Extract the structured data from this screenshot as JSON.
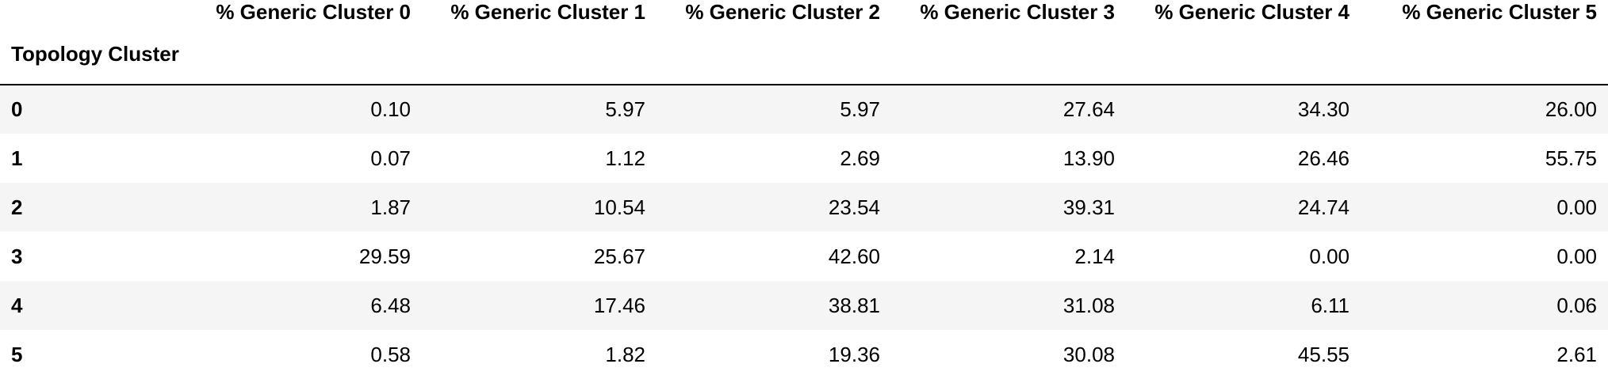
{
  "table": {
    "index_name": "Topology Cluster",
    "columns": [
      "% Generic Cluster 0",
      "% Generic Cluster 1",
      "% Generic Cluster 2",
      "% Generic Cluster 3",
      "% Generic Cluster 4",
      "% Generic Cluster 5"
    ],
    "rows": [
      {
        "index": "0",
        "values": [
          "0.10",
          "5.97",
          "5.97",
          "27.64",
          "34.30",
          "26.00"
        ]
      },
      {
        "index": "1",
        "values": [
          "0.07",
          "1.12",
          "2.69",
          "13.90",
          "26.46",
          "55.75"
        ]
      },
      {
        "index": "2",
        "values": [
          "1.87",
          "10.54",
          "23.54",
          "39.31",
          "24.74",
          "0.00"
        ]
      },
      {
        "index": "3",
        "values": [
          "29.59",
          "25.67",
          "42.60",
          "2.14",
          "0.00",
          "0.00"
        ]
      },
      {
        "index": "4",
        "values": [
          "6.48",
          "17.46",
          "38.81",
          "31.08",
          "6.11",
          "0.06"
        ]
      },
      {
        "index": "5",
        "values": [
          "0.58",
          "1.82",
          "19.36",
          "30.08",
          "45.55",
          "2.61"
        ]
      }
    ]
  }
}
